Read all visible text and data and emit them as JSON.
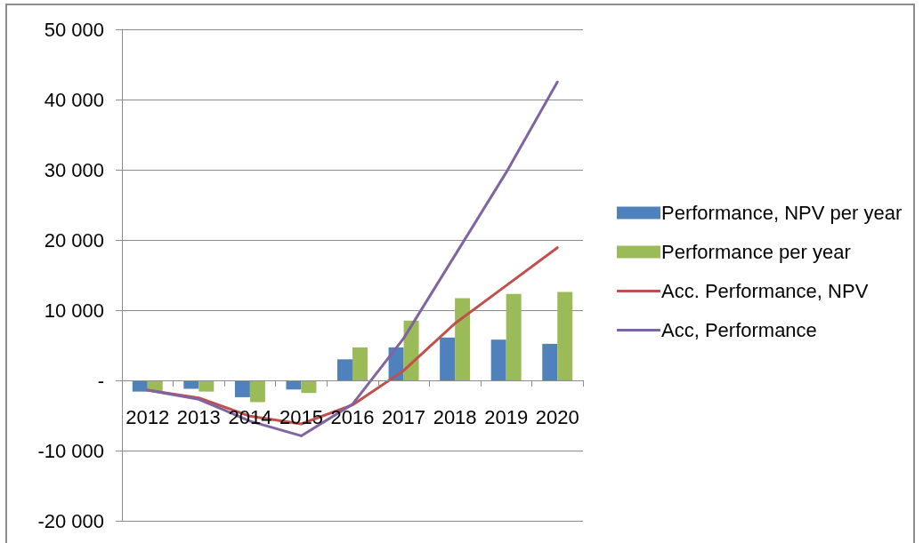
{
  "chart_data": {
    "type": "bar",
    "categories": [
      "2012",
      "2013",
      "2014",
      "2015",
      "2016",
      "2017",
      "2018",
      "2019",
      "2020"
    ],
    "series": [
      {
        "name": "Performance, NPV per year",
        "color": "#4f81bd",
        "values": [
          -1600,
          -1200,
          -2400,
          -1300,
          3000,
          4700,
          6100,
          5800,
          5200
        ]
      },
      {
        "name": "Performance per year",
        "color": "#9bbb59",
        "values": [
          -1600,
          -1600,
          -3100,
          -1800,
          4700,
          8500,
          11700,
          12300,
          12600
        ]
      },
      {
        "name": "Acc. Performance, NPV",
        "type": "line",
        "color": "#c0504d",
        "values": [
          -1400,
          -2500,
          -5100,
          -6200,
          -3500,
          1400,
          8100,
          13500,
          18900
        ]
      },
      {
        "name": "Acc, Performance",
        "type": "line",
        "color": "#8064a2",
        "values": [
          -1400,
          -2700,
          -5800,
          -7900,
          -3400,
          6000,
          17800,
          29600,
          42500
        ]
      }
    ],
    "ylim": [
      -20000,
      50000
    ],
    "yticks": [
      {
        "value": -20000,
        "label": "-20 000"
      },
      {
        "value": -10000,
        "label": "-10 000"
      },
      {
        "value": 0,
        "label": "-"
      },
      {
        "value": 10000,
        "label": "10 000"
      },
      {
        "value": 20000,
        "label": "20 000"
      },
      {
        "value": 30000,
        "label": "30 000"
      },
      {
        "value": 40000,
        "label": "40 000"
      },
      {
        "value": 50000,
        "label": "50 000"
      }
    ],
    "grid": "y",
    "legend": "right",
    "line_style": "solid"
  }
}
